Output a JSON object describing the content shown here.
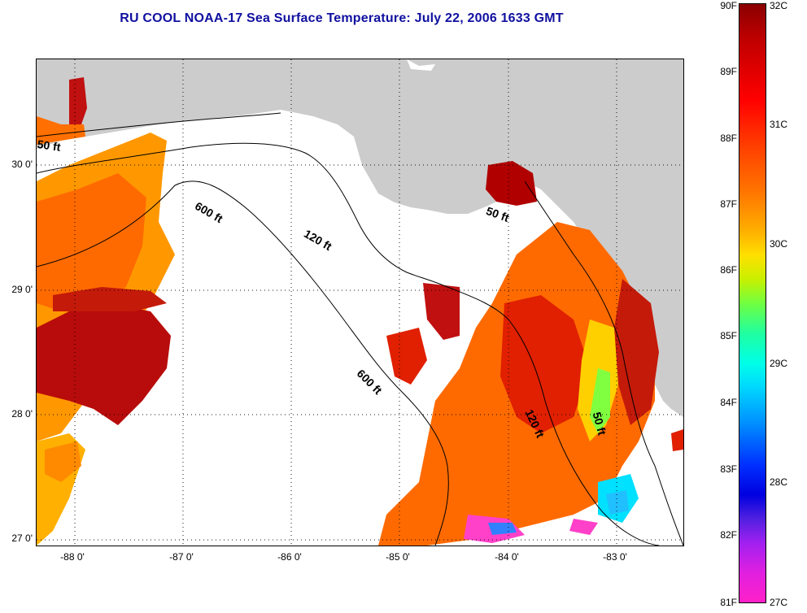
{
  "title": "RU COOL  NOAA-17  Sea Surface Temperature:  July 22, 2006 1633 GMT",
  "map": {
    "lat_ticks": [
      "30 0'",
      "29 0'",
      "28 0'",
      "27 0'"
    ],
    "lon_ticks": [
      "-88 0'",
      "-87 0'",
      "-86 0'",
      "-85 0'",
      "-84 0'",
      "-83 0'"
    ],
    "contour_labels": [
      "50 ft",
      "600 ft",
      "120 ft",
      "600 ft",
      "50 ft",
      "120 ft",
      "50 ft"
    ],
    "colors": {
      "land": "#cccccc",
      "cloud": "#ffffff",
      "hot": "#b00000",
      "red": "#e02000",
      "orange": "#ff7000",
      "yellow": "#ffd000",
      "cool": "#00e0ff"
    }
  },
  "colorbar": {
    "fahrenheit": [
      "90F",
      "89F",
      "88F",
      "87F",
      "86F",
      "85F",
      "84F",
      "83F",
      "82F",
      "81F"
    ],
    "celsius": [
      "32C",
      "31C",
      "30C",
      "29C",
      "28C",
      "27C"
    ]
  }
}
